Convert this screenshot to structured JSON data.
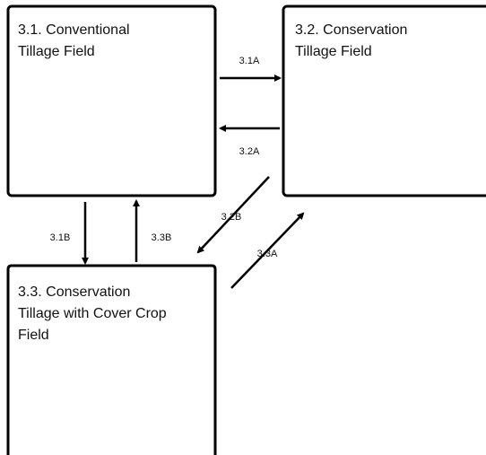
{
  "nodes": [
    {
      "lines": [
        "3.1. Conventional",
        "Tillage Field"
      ]
    },
    {
      "lines": [
        "3.2. Conservation",
        "Tillage Field"
      ]
    },
    {
      "lines": [
        "3.3. Conservation",
        "Tillage with Cover Crop",
        "Field"
      ]
    }
  ],
  "edges": [
    {
      "label": "3.1A"
    },
    {
      "label": "3.2A"
    },
    {
      "label": "3.2B"
    },
    {
      "label": "3.3A"
    },
    {
      "label": "3.1B"
    },
    {
      "label": "3.3B"
    }
  ]
}
